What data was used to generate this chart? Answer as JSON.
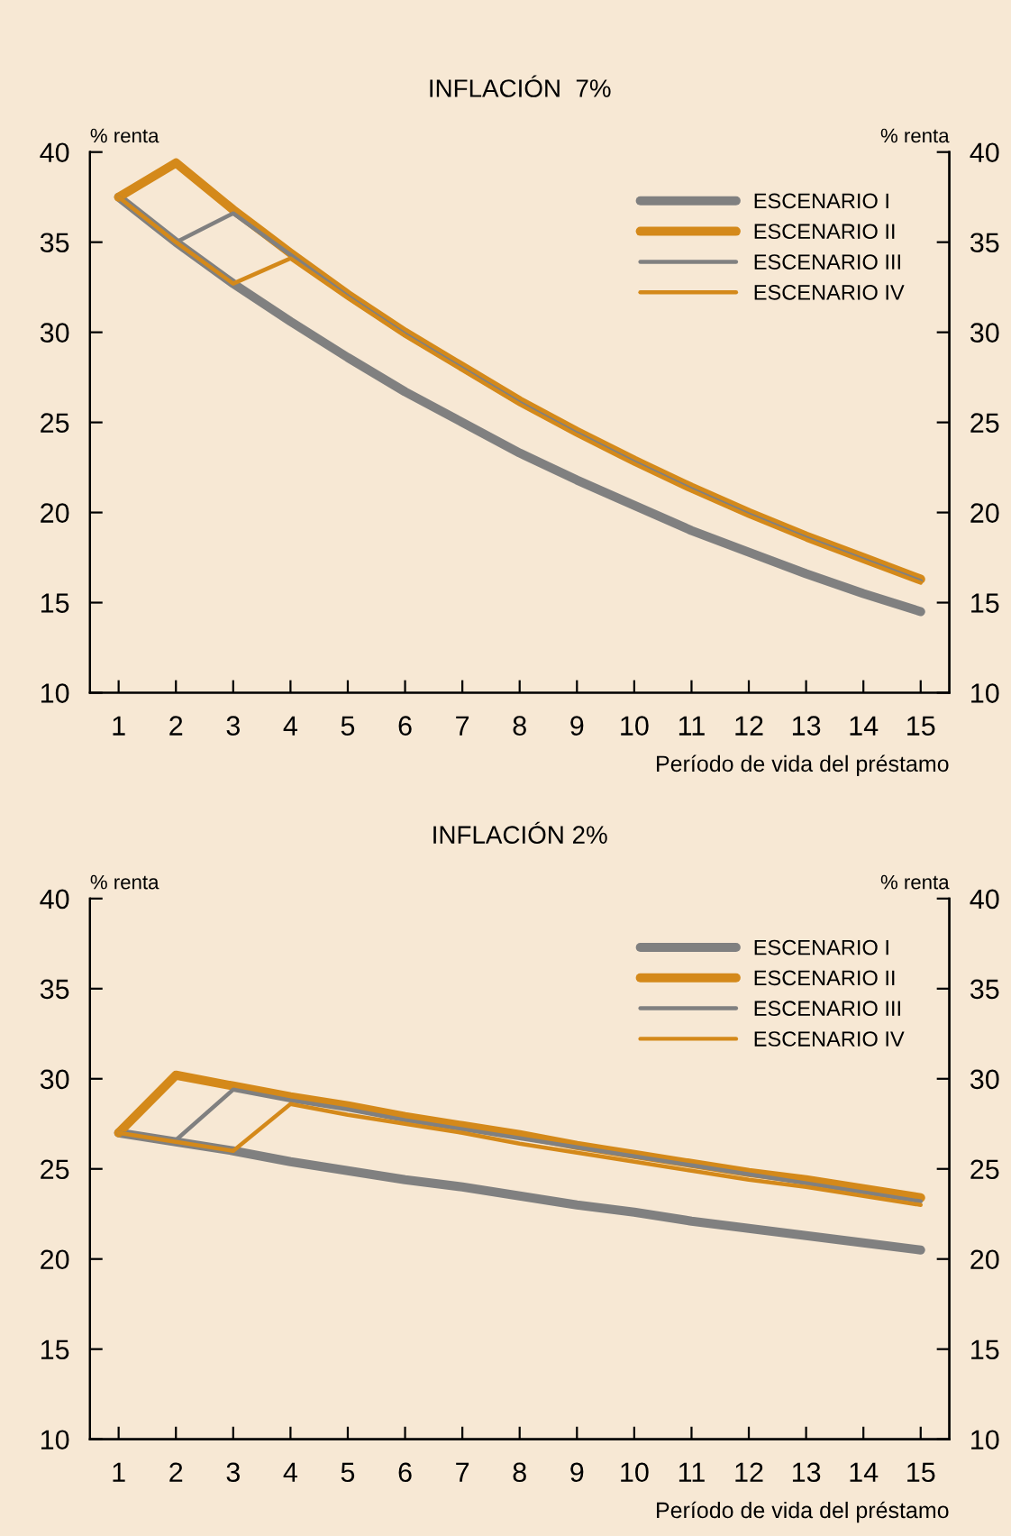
{
  "chart_data": [
    {
      "type": "line",
      "title": "INFLACIÓN  7%",
      "xlabel": "Período de vida del préstamo",
      "ylabel": "% renta",
      "y2label": "% renta",
      "x": [
        1,
        2,
        3,
        4,
        5,
        6,
        7,
        8,
        9,
        10,
        11,
        12,
        13,
        14,
        15
      ],
      "xlim": [
        0.5,
        15.5
      ],
      "xticks": [
        1,
        2,
        3,
        4,
        5,
        6,
        7,
        8,
        9,
        10,
        11,
        12,
        13,
        14,
        15
      ],
      "ylim": [
        10,
        40
      ],
      "yticks": [
        10,
        15,
        20,
        25,
        30,
        35,
        40
      ],
      "y2lim": [
        10,
        40
      ],
      "y2ticks": [
        10,
        15,
        20,
        25,
        30,
        35,
        40
      ],
      "legend": "top right",
      "grid": false,
      "marker": "none",
      "line_style": "solid",
      "series": [
        {
          "name": "ESCENARIO I",
          "color": "#808080",
          "values": [
            37.5,
            35.0,
            32.7,
            30.6,
            28.6,
            26.7,
            25.0,
            23.3,
            21.8,
            20.4,
            19.0,
            17.8,
            16.6,
            15.5,
            14.5
          ]
        },
        {
          "name": "ESCENARIO II",
          "color": "#d4891a",
          "values": [
            37.5,
            39.4,
            36.8,
            34.4,
            32.1,
            30.0,
            28.1,
            26.2,
            24.5,
            22.9,
            21.4,
            20.0,
            18.7,
            17.5,
            16.3
          ]
        },
        {
          "name": "ESCENARIO III",
          "color": "#808080",
          "values": [
            37.5,
            35.0,
            36.6,
            34.3,
            32.0,
            29.9,
            28.0,
            26.1,
            24.4,
            22.8,
            21.3,
            19.9,
            18.6,
            17.4,
            16.2
          ]
        },
        {
          "name": "ESCENARIO IV",
          "color": "#d4891a",
          "values": [
            37.5,
            35.0,
            32.7,
            34.1,
            31.9,
            29.8,
            27.9,
            26.0,
            24.3,
            22.7,
            21.2,
            19.8,
            18.5,
            17.3,
            16.1
          ]
        }
      ]
    },
    {
      "type": "line",
      "title": "INFLACIÓN 2%",
      "xlabel": "Período de vida del préstamo",
      "ylabel": "% renta",
      "y2label": "% renta",
      "x": [
        1,
        2,
        3,
        4,
        5,
        6,
        7,
        8,
        9,
        10,
        11,
        12,
        13,
        14,
        15
      ],
      "xlim": [
        0.5,
        15.5
      ],
      "xticks": [
        1,
        2,
        3,
        4,
        5,
        6,
        7,
        8,
        9,
        10,
        11,
        12,
        13,
        14,
        15
      ],
      "ylim": [
        10,
        40
      ],
      "yticks": [
        10,
        15,
        20,
        25,
        30,
        35,
        40
      ],
      "y2lim": [
        10,
        40
      ],
      "y2ticks": [
        10,
        15,
        20,
        25,
        30,
        35,
        40
      ],
      "legend": "top right",
      "grid": false,
      "marker": "none",
      "line_style": "solid",
      "series": [
        {
          "name": "ESCENARIO I",
          "color": "#808080",
          "values": [
            27.0,
            26.5,
            26.0,
            25.4,
            24.9,
            24.4,
            24.0,
            23.5,
            23.0,
            22.6,
            22.1,
            21.7,
            21.3,
            20.9,
            20.5
          ]
        },
        {
          "name": "ESCENARIO II",
          "color": "#d4891a",
          "values": [
            27.0,
            30.2,
            29.6,
            29.0,
            28.5,
            27.9,
            27.4,
            26.9,
            26.3,
            25.8,
            25.3,
            24.8,
            24.4,
            23.9,
            23.4
          ]
        },
        {
          "name": "ESCENARIO III",
          "color": "#808080",
          "values": [
            27.0,
            26.6,
            29.4,
            28.8,
            28.3,
            27.7,
            27.2,
            26.7,
            26.2,
            25.7,
            25.2,
            24.7,
            24.2,
            23.7,
            23.2
          ]
        },
        {
          "name": "ESCENARIO IV",
          "color": "#d4891a",
          "values": [
            27.0,
            26.5,
            26.0,
            28.6,
            28.0,
            27.5,
            27.0,
            26.4,
            25.9,
            25.4,
            24.9,
            24.4,
            24.0,
            23.5,
            23.0
          ]
        }
      ]
    }
  ]
}
